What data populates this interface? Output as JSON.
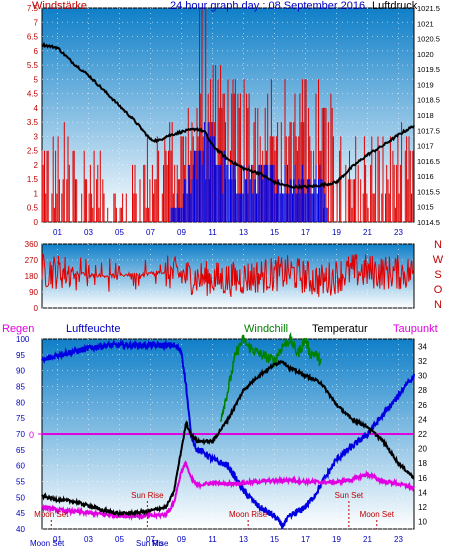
{
  "header": {
    "title": "24 hour graph day : 08 September 2016",
    "left_label": "Windstärke",
    "right_label": "Luftdruck"
  },
  "colors": {
    "wind": "#e00000",
    "gust": "#0000e0",
    "pressure": "#000000",
    "humidity": "#0000e0",
    "temperature": "#000000",
    "windchill": "#008000",
    "dewpoint": "#e000e0",
    "rain": "#e000e0",
    "sky_top": "#0f7fc8",
    "sky_bottom": "#ffffff"
  },
  "chart_data": [
    {
      "type": "line",
      "name": "wind-pressure",
      "left_axis": {
        "label": "Windstärke",
        "ylim": [
          0,
          7.5
        ],
        "ticks": [
          "0",
          "0.5",
          "1",
          "1.5",
          "2",
          "2.5",
          "3",
          "3.5",
          "4",
          "4.5",
          "5",
          "5.5",
          "6",
          "6.5",
          "7",
          "7.5"
        ]
      },
      "right_axis": {
        "label": "Luftdruck",
        "ylim": [
          1014.5,
          1021.5
        ],
        "ticks": [
          "1014.5",
          "1015",
          "1015.5",
          "1016",
          "1016.5",
          "1017",
          "1017.5",
          "1018",
          "1018.5",
          "1019",
          "1019.5",
          "1020",
          "1020.5",
          "1021",
          "1021.5"
        ]
      },
      "x_ticks": [
        "01",
        "03",
        "05",
        "07",
        "09",
        "11",
        "13",
        "15",
        "17",
        "19",
        "21",
        "23"
      ],
      "pressure": {
        "x": [
          0,
          1,
          2,
          3,
          4,
          5,
          6,
          6.5,
          7,
          7.5,
          8,
          9,
          10,
          10.5,
          11,
          12,
          13,
          14,
          15,
          16,
          17,
          18,
          19,
          20,
          21,
          22,
          23,
          24
        ],
        "values": [
          1020.3,
          1020.2,
          1019.7,
          1019.3,
          1018.8,
          1018.3,
          1017.8,
          1017.5,
          1017.2,
          1017.15,
          1017.3,
          1017.45,
          1017.55,
          1017.45,
          1017.0,
          1016.55,
          1016.25,
          1016.1,
          1015.8,
          1015.65,
          1015.65,
          1015.7,
          1015.8,
          1016.3,
          1016.7,
          1017.0,
          1017.35,
          1017.65
        ]
      },
      "wind_profile": {
        "x": [
          0,
          2,
          4,
          5,
          6,
          7,
          8,
          9,
          10,
          11,
          12,
          13,
          14,
          15,
          16,
          17,
          18,
          19,
          20,
          21,
          22,
          23,
          24
        ],
        "values": [
          2,
          2,
          1,
          0.3,
          1,
          2,
          2.5,
          2.5,
          3.5,
          5,
          4,
          3.5,
          4,
          4,
          3.5,
          4,
          3.5,
          3,
          2,
          2,
          2,
          2,
          2
        ]
      },
      "gust_profile": {
        "x": [
          0,
          8,
          9,
          9.5,
          10,
          11,
          12,
          13,
          14,
          15,
          16,
          17,
          18,
          18.5,
          24
        ],
        "values": [
          0,
          0,
          1,
          2,
          3.5,
          3.5,
          2,
          2,
          2,
          2,
          2,
          2,
          2,
          0,
          0
        ]
      }
    },
    {
      "type": "scatter",
      "name": "wind-direction",
      "ylim": [
        0,
        360
      ],
      "y_ticks": [
        "0",
        "90",
        "180",
        "270",
        "360"
      ],
      "compass": [
        "N",
        "W",
        "S",
        "O",
        "N"
      ],
      "profile": {
        "x": [
          0,
          2,
          4,
          6,
          8,
          10,
          12,
          14,
          16,
          18,
          20,
          22,
          24
        ],
        "values": [
          210,
          200,
          180,
          190,
          200,
          170,
          160,
          180,
          200,
          150,
          210,
          200,
          200
        ]
      }
    },
    {
      "type": "line",
      "name": "temperature-humidity",
      "labels": {
        "rain": "Regen",
        "humidity": "Luftfeuchte",
        "windchill": "Windchill",
        "temperature": "Temperatur",
        "dewpoint": "Taupunkt"
      },
      "left_axis": {
        "ylim": [
          40,
          100
        ],
        "ticks": [
          "40",
          "45",
          "50",
          "55",
          "60",
          "65",
          "70",
          "75",
          "80",
          "85",
          "90",
          "95",
          "100"
        ]
      },
      "right_axis": {
        "ylim": [
          9,
          35
        ],
        "ticks": [
          "10",
          "12",
          "14",
          "16",
          "18",
          "20",
          "22",
          "24",
          "26",
          "28",
          "30",
          "32",
          "34"
        ]
      },
      "rain_axis_label": "0",
      "x_ticks": [
        "01",
        "03",
        "05",
        "07",
        "09",
        "11",
        "13",
        "15",
        "17",
        "19",
        "21",
        "23"
      ],
      "humidity": {
        "x": [
          0,
          1,
          2,
          3,
          4,
          5,
          6,
          7,
          8,
          8.5,
          9,
          9.3,
          9.6,
          10,
          10.5,
          11,
          12,
          13,
          14,
          15,
          15.5,
          16,
          17,
          17.5,
          18,
          19,
          20,
          21,
          22,
          23,
          23.5,
          24
        ],
        "values": [
          93,
          95,
          96,
          97,
          98,
          98,
          98,
          98,
          98,
          98,
          96,
          85,
          70,
          65,
          64,
          62,
          60,
          52,
          47,
          44,
          41,
          44,
          47,
          50,
          54,
          62,
          66,
          70,
          76,
          82,
          86,
          88
        ]
      },
      "temperature": {
        "x": [
          0,
          1,
          2,
          3,
          4,
          5,
          6,
          7,
          8,
          8.5,
          9,
          9.3,
          9.6,
          10,
          10.5,
          11,
          12,
          13,
          14,
          15,
          15.5,
          16,
          17,
          18,
          19,
          20,
          21,
          22,
          23,
          24
        ],
        "values": [
          13.5,
          13,
          12.8,
          12.2,
          11.5,
          11.1,
          11.2,
          11.5,
          12,
          14,
          20,
          23.5,
          22,
          21,
          21,
          21,
          24,
          28,
          30,
          31.5,
          32,
          31,
          30,
          29,
          26,
          24,
          23,
          21,
          18,
          16
        ]
      },
      "windchill": {
        "x": [
          11.5,
          12,
          12.5,
          13,
          13.3,
          14,
          15,
          15.5,
          16,
          16.5,
          17,
          17.3,
          17.6,
          18
        ],
        "values": [
          24,
          28,
          33,
          35,
          34,
          33,
          32,
          34,
          35,
          33,
          35,
          33,
          33,
          32
        ]
      },
      "dewpoint": {
        "x": [
          0,
          1,
          2,
          3,
          4,
          5,
          6,
          7,
          8,
          8.5,
          9,
          9.3,
          9.6,
          10,
          11,
          12,
          13,
          14,
          15,
          16,
          17,
          18,
          19,
          20,
          21,
          22,
          23,
          24
        ],
        "values": [
          12,
          11.6,
          11.4,
          11.2,
          11,
          10.8,
          10.8,
          10.8,
          11,
          12.5,
          17,
          18,
          16,
          15,
          15.3,
          15.2,
          15.3,
          15.5,
          15.6,
          15.7,
          15.5,
          15.4,
          15.4,
          15.8,
          16.5,
          15.5,
          15.2,
          14.6
        ]
      },
      "rain_value": 0,
      "sun_rise": {
        "label": "Sun Rise",
        "x": 6.8
      },
      "sun_set": {
        "label": "Sun Set",
        "x": 19.8
      },
      "moon_set": {
        "label": "Moon Set",
        "x": 0.6
      },
      "moon_rise": {
        "label": "Moon Rise",
        "x": 13.3
      },
      "moon_set_2": {
        "label": "Moon Set",
        "x": 21.6
      },
      "bottom_labels": {
        "moon_set": "Moon Set",
        "sun_rise": "Sun Rise",
        "moon_rise_c": "Mo"
      }
    }
  ]
}
